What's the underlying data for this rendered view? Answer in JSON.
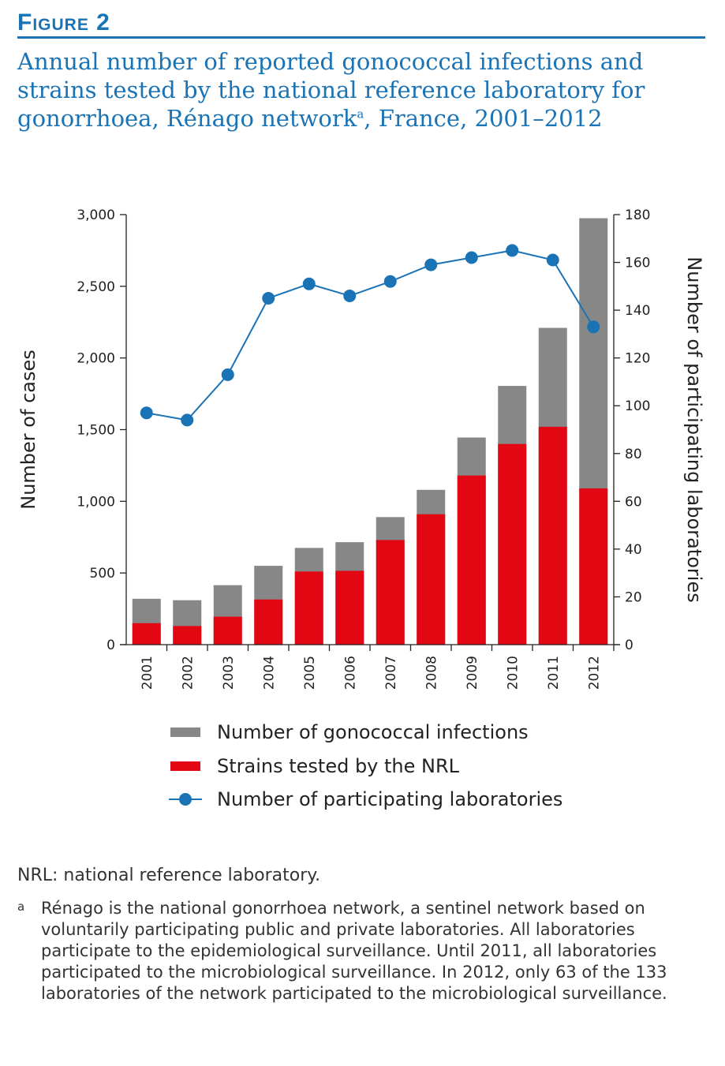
{
  "figure": {
    "label": "Figure 2",
    "title": "Annual number of reported gonococcal infections and strains tested by the national reference laboratory for gonorrhoea, Rénago network",
    "title_sup": "a",
    "title_tail": ", France, 2001–2012"
  },
  "chart_data": {
    "type": "bar",
    "categories": [
      "2001",
      "2002",
      "2003",
      "2004",
      "2005",
      "2006",
      "2007",
      "2008",
      "2009",
      "2010",
      "2011",
      "2012"
    ],
    "series": [
      {
        "name": "Number of gonococcal infections",
        "type": "bar",
        "axis": "left",
        "color": "#878787",
        "values": [
          320,
          310,
          415,
          550,
          675,
          715,
          890,
          1080,
          1445,
          1805,
          2210,
          2975
        ]
      },
      {
        "name": "Strains tested by the NRL",
        "type": "bar",
        "axis": "left",
        "color": "#e30613",
        "values": [
          150,
          130,
          195,
          315,
          510,
          515,
          730,
          910,
          1180,
          1400,
          1520,
          1090
        ]
      },
      {
        "name": "Number of participating laboratories",
        "type": "line",
        "axis": "right",
        "color": "#1a73b5",
        "values": [
          97,
          94,
          113,
          145,
          151,
          146,
          152,
          159,
          162,
          165,
          161,
          133
        ]
      }
    ],
    "ylabel": "Number of cases",
    "ylabel_right": "Number of participating laboratories",
    "ylim": [
      0,
      3000
    ],
    "ylim_right": [
      0,
      180
    ],
    "yticks": [
      0,
      500,
      1000,
      1500,
      2000,
      2500,
      3000
    ],
    "yticks_labels": [
      "0",
      "500",
      "1,000",
      "1,500",
      "2,000",
      "2,500",
      "3,000"
    ],
    "yticks_right": [
      0,
      20,
      40,
      60,
      80,
      100,
      120,
      140,
      160,
      180
    ],
    "grid": false,
    "legend_position": "bottom"
  },
  "notes": {
    "abbrev": "NRL: national reference laboratory.",
    "footnote_marker": "a",
    "footnote": "Rénago is the national gonorrhoea network, a sentinel network based on voluntarily participating public and private laboratories. All laboratories participate to the epidemiological surveillance. Until 2011, all laboratories participated to the microbiological surveillance. In 2012, only 63 of the 133 laboratories of the network participated to the microbiological surveillance."
  }
}
